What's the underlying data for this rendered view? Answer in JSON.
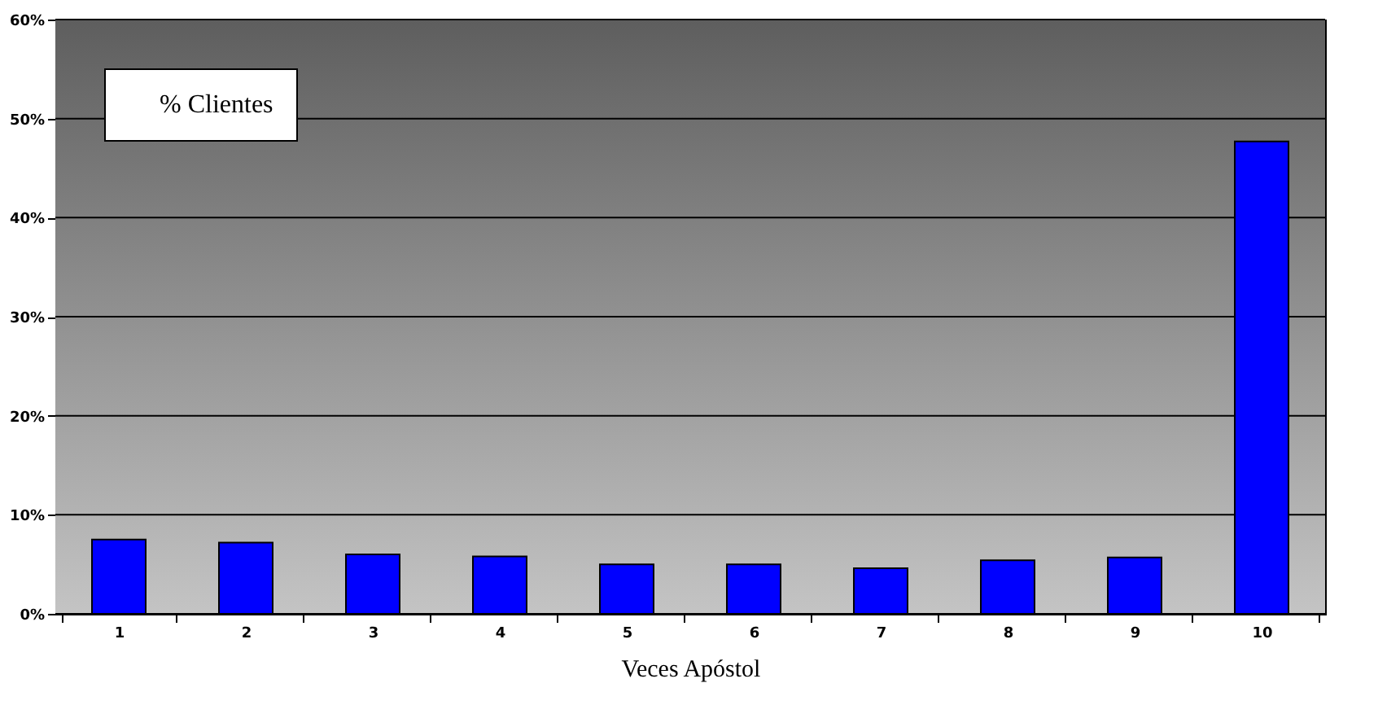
{
  "chart_data": {
    "type": "bar",
    "xlabel": "Veces Apóstol",
    "categories": [
      "1",
      "2",
      "3",
      "4",
      "5",
      "6",
      "7",
      "8",
      "9",
      "10"
    ],
    "series": [
      {
        "name": "% Clientes",
        "color": "#0000ff",
        "values": [
          7.5,
          7.2,
          6.0,
          5.8,
          5.0,
          5.0,
          4.6,
          5.4,
          5.7,
          47.7
        ]
      }
    ],
    "ylim": [
      0,
      60
    ],
    "yticks": [
      {
        "value": 0,
        "label": "0%"
      },
      {
        "value": 10,
        "label": "10%"
      },
      {
        "value": 20,
        "label": "20%"
      },
      {
        "value": 30,
        "label": "30%"
      },
      {
        "value": 40,
        "label": "40%"
      },
      {
        "value": 50,
        "label": "50%"
      },
      {
        "value": 60,
        "label": "60%"
      }
    ],
    "grid": "y",
    "legend": "top left"
  }
}
